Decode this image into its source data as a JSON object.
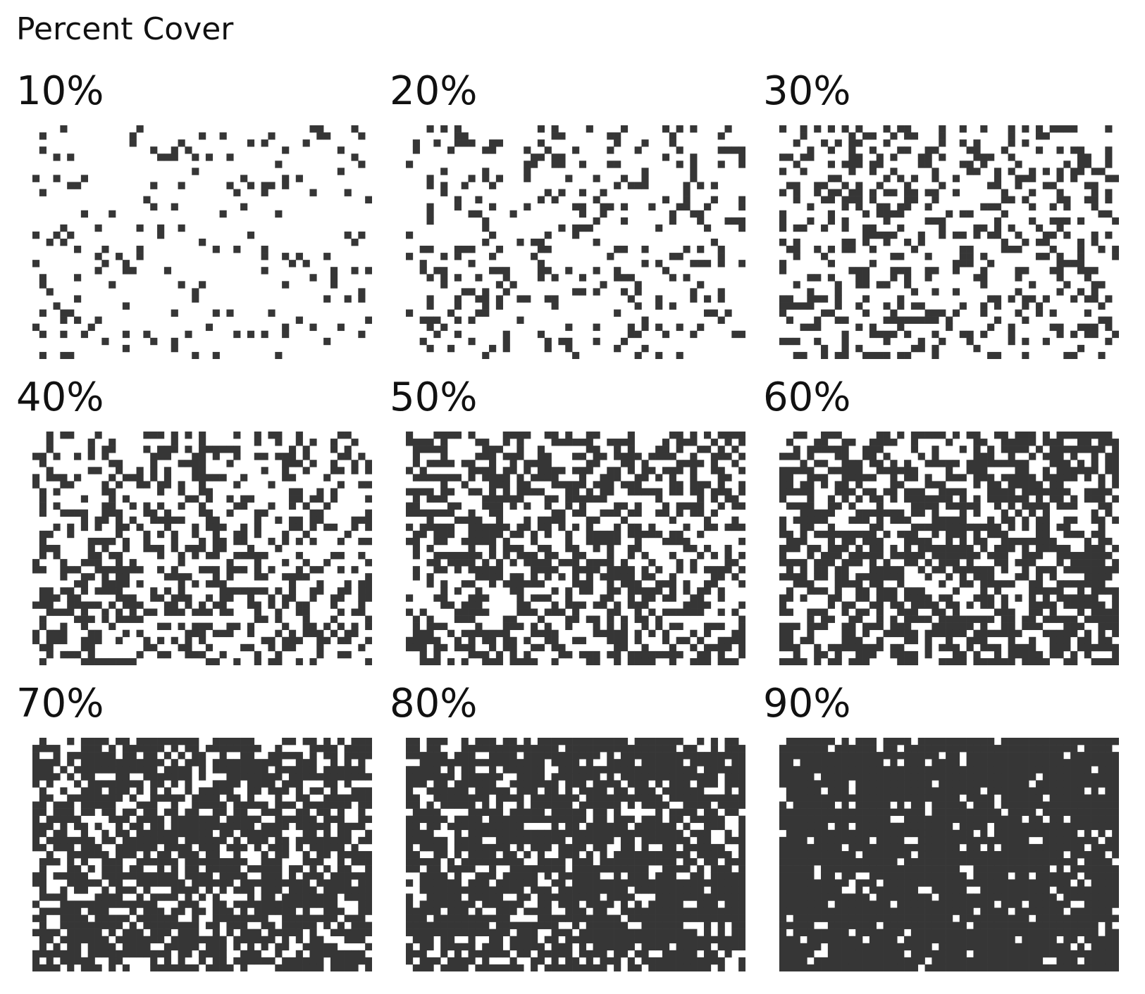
{
  "title": "Percent Cover",
  "grid_rows": 33,
  "grid_cols": 49,
  "colors": {
    "filled": "#363636",
    "background": "#ffffff"
  },
  "panels": [
    {
      "label": "10%",
      "cover_fraction": 0.1
    },
    {
      "label": "20%",
      "cover_fraction": 0.2
    },
    {
      "label": "30%",
      "cover_fraction": 0.3
    },
    {
      "label": "40%",
      "cover_fraction": 0.4
    },
    {
      "label": "50%",
      "cover_fraction": 0.5
    },
    {
      "label": "60%",
      "cover_fraction": 0.6
    },
    {
      "label": "70%",
      "cover_fraction": 0.7
    },
    {
      "label": "80%",
      "cover_fraction": 0.8
    },
    {
      "label": "90%",
      "cover_fraction": 0.9
    }
  ]
}
